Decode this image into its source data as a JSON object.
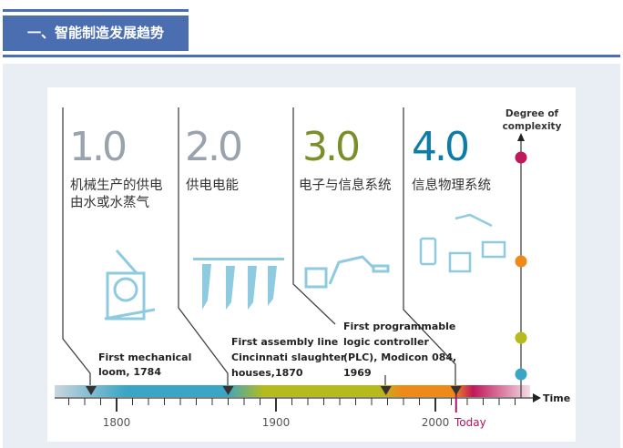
{
  "header": {
    "title": "一、智能制造发展趋势"
  },
  "infographic": {
    "stages": [
      {
        "version": "1.0",
        "desc_lines": [
          "机械生产的供电",
          "由水或水蒸气"
        ],
        "color": "#9aa3ad"
      },
      {
        "version": "2.0",
        "desc_lines": [
          "供电电能"
        ],
        "color": "#9aa3ad"
      },
      {
        "version": "3.0",
        "desc_lines": [
          "电子与信息系统"
        ],
        "color": "#7a8f2a"
      },
      {
        "version": "4.0",
        "desc_lines": [
          "信息物理系统"
        ],
        "color": "#0f7ca8"
      }
    ],
    "events": [
      {
        "lines": [
          "First mechanical",
          "loom, 1784"
        ],
        "year": 1784
      },
      {
        "lines": [
          "First assembly line",
          "Cincinnati slaughter",
          "houses,1870"
        ],
        "year": 1870
      },
      {
        "lines": [
          "First programmable",
          "logic controller",
          "(PLC), Modicon 084,",
          "1969"
        ],
        "year": 1969
      }
    ],
    "complexity_label": [
      "Degree of",
      "complexity"
    ],
    "complexity_dot_colors": [
      "#c0185a",
      "#ee8a1a",
      "#b5bb1c",
      "#3aa5c4"
    ],
    "time_label": "Time",
    "year_labels": [
      "1800",
      "1900",
      "2000"
    ],
    "today_label": "Today",
    "today_year": 2013,
    "today_color": "#b0145a"
  }
}
